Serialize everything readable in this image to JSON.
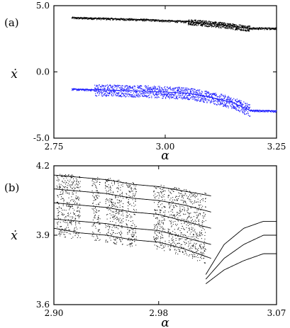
{
  "chart_data": [
    {
      "type": "scatter",
      "panel_label": "(a)",
      "title": "",
      "xlabel": "α",
      "ylabel": "ẋ",
      "xlim": [
        2.75,
        3.25
      ],
      "ylim": [
        -5.0,
        5.0
      ],
      "xticks": [
        2.75,
        3.0,
        3.25
      ],
      "xtick_labels": [
        "2.75",
        "3.00",
        "3.25"
      ],
      "yticks": [
        5.0,
        0.0,
        -5.0
      ],
      "ytick_labels": [
        "5.0",
        "0.0",
        "-5.0"
      ],
      "grid": false,
      "legend": "none",
      "series": [
        {
          "color": "#000000",
          "description_points": [
            {
              "x": 2.79,
              "y": 4.1
            },
            {
              "x": 2.85,
              "y": 4.05
            },
            {
              "x": 2.95,
              "y": 3.95
            },
            {
              "x": 3.05,
              "y": 3.8
            },
            {
              "x": 3.1,
              "y": 3.65
            },
            {
              "x": 3.15,
              "y": 3.45
            },
            {
              "x": 3.19,
              "y": 3.3
            },
            {
              "x": 3.25,
              "y": 3.3
            }
          ]
        },
        {
          "color": "#1a1aff",
          "description_points": [
            {
              "x": 2.79,
              "y": -1.3
            },
            {
              "x": 2.85,
              "y": -1.35
            },
            {
              "x": 2.95,
              "y": -1.45
            },
            {
              "x": 3.05,
              "y": -1.6
            },
            {
              "x": 3.1,
              "y": -1.9
            },
            {
              "x": 3.15,
              "y": -2.3
            },
            {
              "x": 3.19,
              "y": -2.9
            },
            {
              "x": 3.25,
              "y": -2.95
            }
          ]
        }
      ]
    },
    {
      "type": "scatter",
      "panel_label": "(b)",
      "title": "",
      "xlabel": "α",
      "ylabel": "ẋ",
      "xlim": [
        2.9,
        3.07
      ],
      "ylim": [
        3.6,
        4.2
      ],
      "xticks": [
        2.9,
        2.98,
        3.07
      ],
      "xtick_labels": [
        "2.90",
        "2.98",
        "3.07"
      ],
      "yticks": [
        4.2,
        3.9,
        3.6
      ],
      "ytick_labels": [
        "4.2",
        "3.9",
        "3.6"
      ],
      "grid": false,
      "legend": "none",
      "chaotic_bands": [
        [
          2.902,
          2.92
        ],
        [
          2.929,
          2.935
        ],
        [
          2.939,
          2.953
        ],
        [
          2.955,
          2.963
        ],
        [
          2.976,
          2.985
        ],
        [
          2.987,
          3.016
        ]
      ],
      "branches": [
        {
          "x": [
            2.9,
            2.92,
            2.94,
            2.96,
            2.98,
            3.0,
            3.02
          ],
          "y": [
            4.16,
            4.15,
            4.14,
            4.12,
            4.11,
            4.09,
            4.07
          ]
        },
        {
          "x": [
            2.9,
            2.92,
            2.94,
            2.96,
            2.98,
            3.0,
            3.02
          ],
          "y": [
            4.1,
            4.09,
            4.08,
            4.06,
            4.05,
            4.03,
            4.0
          ]
        },
        {
          "x": [
            2.9,
            2.92,
            2.94,
            2.96,
            2.98,
            3.0,
            3.02
          ],
          "y": [
            4.04,
            4.03,
            4.02,
            4.0,
            3.99,
            3.96,
            3.93
          ]
        },
        {
          "x": [
            2.9,
            2.92,
            2.94,
            2.96,
            2.98,
            3.0,
            3.02
          ],
          "y": [
            3.97,
            3.96,
            3.95,
            3.93,
            3.92,
            3.89,
            3.86
          ]
        },
        {
          "x": [
            2.9,
            2.92,
            2.94,
            2.96,
            2.98,
            3.0,
            3.02
          ],
          "y": [
            3.93,
            3.91,
            3.9,
            3.88,
            3.87,
            3.84,
            3.8
          ]
        },
        {
          "x": [
            3.016,
            3.03,
            3.045,
            3.06,
            3.07
          ],
          "y": [
            3.73,
            3.86,
            3.93,
            3.96,
            3.96
          ]
        },
        {
          "x": [
            3.016,
            3.03,
            3.045,
            3.06,
            3.07
          ],
          "y": [
            3.71,
            3.8,
            3.86,
            3.9,
            3.9
          ]
        },
        {
          "x": [
            3.016,
            3.03,
            3.045,
            3.06,
            3.07
          ],
          "y": [
            3.69,
            3.75,
            3.79,
            3.82,
            3.82
          ]
        }
      ]
    }
  ]
}
